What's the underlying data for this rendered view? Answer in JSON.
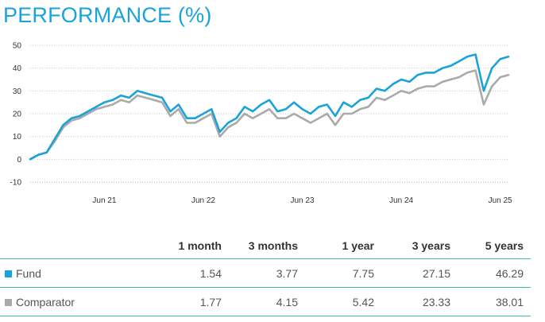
{
  "title": "PERFORMANCE (%)",
  "colors": {
    "fund": "#1aa3d9",
    "comparator": "#aaaaaa",
    "title": "#1aa3d9",
    "rule": "#3dbf9a"
  },
  "chart_data": {
    "type": "line",
    "xlabel": "",
    "ylabel": "",
    "x_ticks": [
      "Jun 21",
      "Jun 22",
      "Jun 23",
      "Jun 24",
      "Jun 25"
    ],
    "y_ticks": [
      50,
      40,
      30,
      20,
      10,
      0,
      -10
    ],
    "ylim": [
      -10,
      50
    ],
    "xlim": [
      "2020-09",
      "2025-07"
    ],
    "grid": "horizontal",
    "series": [
      {
        "name": "Fund",
        "x": [
          "2020-09",
          "2020-10",
          "2020-11",
          "2020-12",
          "2021-01",
          "2021-02",
          "2021-03",
          "2021-04",
          "2021-05",
          "2021-06",
          "2021-07",
          "2021-08",
          "2021-09",
          "2021-10",
          "2021-11",
          "2021-12",
          "2022-01",
          "2022-02",
          "2022-03",
          "2022-04",
          "2022-05",
          "2022-06",
          "2022-07",
          "2022-08",
          "2022-09",
          "2022-10",
          "2022-11",
          "2022-12",
          "2023-01",
          "2023-02",
          "2023-03",
          "2023-04",
          "2023-05",
          "2023-06",
          "2023-07",
          "2023-08",
          "2023-09",
          "2023-10",
          "2023-11",
          "2023-12",
          "2024-01",
          "2024-02",
          "2024-03",
          "2024-04",
          "2024-05",
          "2024-06",
          "2024-07",
          "2024-08",
          "2024-09",
          "2024-10",
          "2024-11",
          "2024-12",
          "2025-01",
          "2025-02",
          "2025-03",
          "2025-04",
          "2025-05",
          "2025-06",
          "2025-07"
        ],
        "values": [
          0,
          2,
          3,
          9,
          15,
          18,
          19,
          21,
          23,
          25,
          26,
          28,
          27,
          30,
          29,
          28,
          27,
          21,
          24,
          18,
          18,
          20,
          22,
          12,
          16,
          18,
          23,
          21,
          24,
          26,
          21,
          22,
          25,
          22,
          20,
          23,
          24,
          19,
          25,
          23,
          26,
          27,
          31,
          30,
          33,
          35,
          34,
          37,
          38,
          38,
          40,
          41,
          43,
          45,
          46,
          30,
          40,
          44,
          45
        ]
      },
      {
        "name": "Comparator",
        "x": [
          "2020-09",
          "2020-10",
          "2020-11",
          "2020-12",
          "2021-01",
          "2021-02",
          "2021-03",
          "2021-04",
          "2021-05",
          "2021-06",
          "2021-07",
          "2021-08",
          "2021-09",
          "2021-10",
          "2021-11",
          "2021-12",
          "2022-01",
          "2022-02",
          "2022-03",
          "2022-04",
          "2022-05",
          "2022-06",
          "2022-07",
          "2022-08",
          "2022-09",
          "2022-10",
          "2022-11",
          "2022-12",
          "2023-01",
          "2023-02",
          "2023-03",
          "2023-04",
          "2023-05",
          "2023-06",
          "2023-07",
          "2023-08",
          "2023-09",
          "2023-10",
          "2023-11",
          "2023-12",
          "2024-01",
          "2024-02",
          "2024-03",
          "2024-04",
          "2024-05",
          "2024-06",
          "2024-07",
          "2024-08",
          "2024-09",
          "2024-10",
          "2024-11",
          "2024-12",
          "2025-01",
          "2025-02",
          "2025-03",
          "2025-04",
          "2025-05",
          "2025-06",
          "2025-07"
        ],
        "values": [
          0,
          2,
          3,
          8,
          14,
          17,
          18,
          20,
          22,
          23,
          24,
          26,
          25,
          28,
          27,
          26,
          25,
          19,
          22,
          16,
          16,
          18,
          20,
          10,
          14,
          16,
          20,
          18,
          20,
          22,
          18,
          18,
          20,
          18,
          16,
          18,
          20,
          15,
          20,
          20,
          22,
          23,
          27,
          26,
          28,
          30,
          29,
          31,
          32,
          32,
          34,
          35,
          36,
          38,
          39,
          24,
          32,
          36,
          37
        ]
      }
    ]
  },
  "table": {
    "headers": [
      "",
      "1 month",
      "3 months",
      "1 year",
      "3 years",
      "5 years"
    ],
    "rows": [
      {
        "name": "Fund",
        "values": [
          "1.54",
          "3.77",
          "7.75",
          "27.15",
          "46.29"
        ]
      },
      {
        "name": "Comparator",
        "values": [
          "1.77",
          "4.15",
          "5.42",
          "23.33",
          "38.01"
        ]
      }
    ]
  }
}
